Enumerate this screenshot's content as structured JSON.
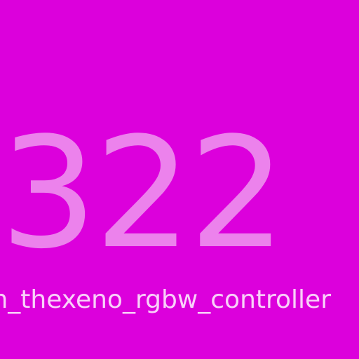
{
  "tile": {
    "number": "322",
    "label": "m_thexeno_rgbw_controller"
  },
  "colors": {
    "background": "#dc00dc",
    "number": "#ec82ec",
    "label": "#f9d1f9"
  }
}
